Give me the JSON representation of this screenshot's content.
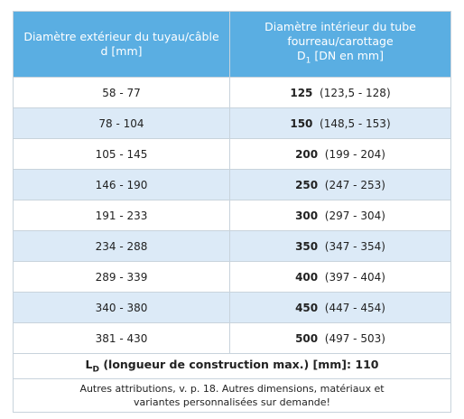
{
  "header": {
    "col1": [
      "Diamètre extérieur du tuyau/câble",
      "d [mm]"
    ],
    "col2": [
      "Diamètre intérieur du tube",
      "fourreau/carottage"
    ],
    "col2_symbol": "D",
    "col2_subscript": "1",
    "col2_unit": " [DN en mm]"
  },
  "table": {
    "rows": [
      [
        "58 - 77",
        "125",
        "(123,5 - 128)"
      ],
      [
        "78 - 104",
        "150",
        "(148,5 - 153)"
      ],
      [
        "105 - 145",
        "200",
        "(199 - 204)"
      ],
      [
        "146 - 190",
        "250",
        "(247 - 253)"
      ],
      [
        "191 - 233",
        "300",
        "(297 - 304)"
      ],
      [
        "234 - 288",
        "350",
        "(347 - 354)"
      ],
      [
        "289 - 339",
        "400",
        "(397 - 404)"
      ],
      [
        "340 - 380",
        "450",
        "(447 - 454)"
      ],
      [
        "381 - 430",
        "500",
        "(497 - 503)"
      ]
    ]
  },
  "footer": {
    "symbol": "L",
    "subscript": "D",
    "text": " (longueur de construction max.) [mm]: 110",
    "note": [
      "Autres attributions,  v. p. 18. Autres dimensions, matériaux et",
      "variantes personnalisées sur demande!"
    ]
  }
}
